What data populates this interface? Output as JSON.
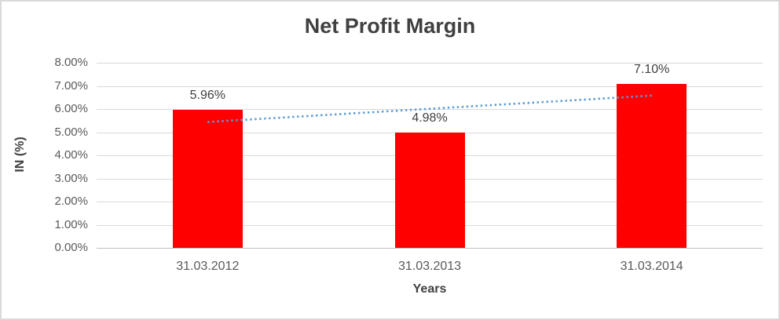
{
  "chart_data": {
    "type": "bar",
    "title": "Net Profit Margin",
    "xlabel": "Years",
    "ylabel": "IN (%)",
    "categories": [
      "31.03.2012",
      "31.03.2013",
      "31.03.2014"
    ],
    "series": [
      {
        "name": "Net Profit Margin",
        "values": [
          5.96,
          4.98,
          7.1
        ],
        "data_labels": [
          "5.96%",
          "4.98%",
          "7.10%"
        ],
        "color": "#FF0000"
      }
    ],
    "y_ticks": [
      "0.00%",
      "1.00%",
      "2.00%",
      "3.00%",
      "4.00%",
      "5.00%",
      "6.00%",
      "7.00%",
      "8.00%"
    ],
    "ylim": [
      0,
      8
    ],
    "grid": true,
    "legend": "none",
    "trendline": {
      "type": "linear",
      "style": "dotted",
      "color": "#5B9BD5",
      "start_value": 5.44,
      "end_value": 6.58
    },
    "colors": {
      "bar": "#FF0000",
      "trendline": "#5B9BD5",
      "gridline": "#D9D9D9",
      "axis_line": "#BFBFBF",
      "tick_text": "#595959",
      "title_text": "#404040",
      "frame_border": "#D9D9D9",
      "background": "#FFFFFF"
    }
  }
}
